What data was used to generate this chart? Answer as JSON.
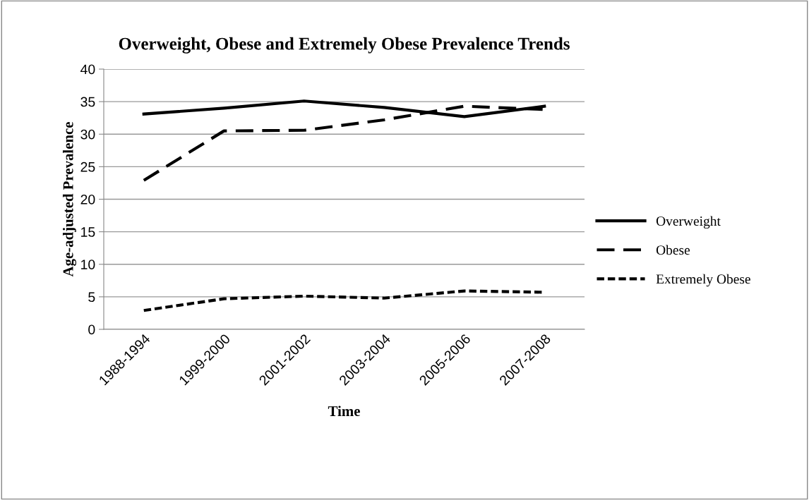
{
  "chart_data": {
    "type": "line",
    "title": "Overweight, Obese and Extremely Obese Prevalence Trends",
    "xlabel": "Time",
    "ylabel": "Age-adjusted Prevalence",
    "categories": [
      "1988-1994",
      "1999-2000",
      "2001-2002",
      "2003-2004",
      "2005-2006",
      "2007-2008"
    ],
    "series": [
      {
        "name": "Overweight",
        "color": "#000000",
        "line_style": "solid",
        "values": [
          33.1,
          34.0,
          35.1,
          34.1,
          32.7,
          34.3
        ]
      },
      {
        "name": "Obese",
        "color": "#000000",
        "line_style": "dashed",
        "values": [
          22.9,
          30.5,
          30.6,
          32.2,
          34.3,
          33.8
        ]
      },
      {
        "name": "Extremely Obese",
        "color": "#000000",
        "line_style": "dotted",
        "values": [
          2.9,
          4.7,
          5.1,
          4.8,
          5.9,
          5.7
        ]
      }
    ],
    "ylim": [
      0,
      40
    ],
    "yticks": [
      0,
      5,
      10,
      15,
      20,
      25,
      30,
      35,
      40
    ],
    "grid": "y",
    "legend": "right",
    "marker": "none"
  }
}
